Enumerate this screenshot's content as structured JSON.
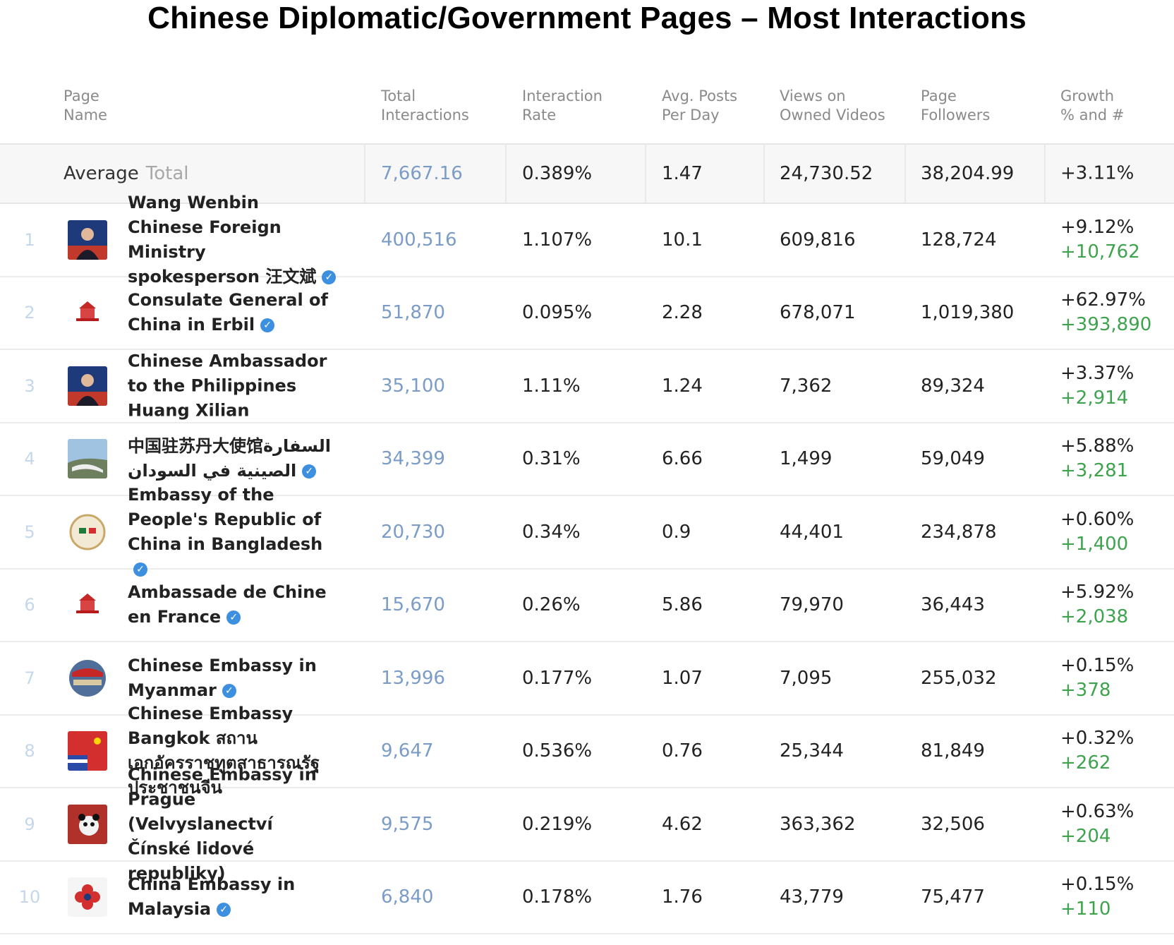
{
  "title": "Chinese Diplomatic/Government Pages – Most Interactions",
  "columns": {
    "page_name": "Page\nName",
    "total_interactions": "Total\nInteractions",
    "interaction_rate": "Interaction\nRate",
    "avg_posts": "Avg. Posts\nPer Day",
    "views": "Views on\nOwned Videos",
    "followers": "Page\nFollowers",
    "growth": "Growth\n% and #"
  },
  "average": {
    "label": "Average",
    "sub_label": "Total",
    "total_interactions": "7,667.16",
    "interaction_rate": "0.389%",
    "avg_posts": "1.47",
    "views": "24,730.52",
    "followers": "38,204.99",
    "growth": "+3.11%"
  },
  "rows": [
    {
      "rank": "1",
      "name": "Wang Wenbin Chinese Foreign Ministry spokesperson 汪文斌",
      "avatar": "person-avatar",
      "total_interactions": "400,516",
      "interaction_rate": "1.107%",
      "avg_posts": "10.1",
      "views": "609,816",
      "followers": "128,724",
      "growth_pct": "+9.12%",
      "growth_num": "+10,762"
    },
    {
      "rank": "2",
      "name": "Consulate General of China in Erbil",
      "avatar": "building-avatar",
      "total_interactions": "51,870",
      "interaction_rate": "0.095%",
      "avg_posts": "2.28",
      "views": "678,071",
      "followers": "1,019,380",
      "growth_pct": "+62.97%",
      "growth_num": "+393,890"
    },
    {
      "rank": "3",
      "name": "Chinese Ambassador to the Philippines Huang Xilian",
      "avatar": "person-avatar",
      "total_interactions": "35,100",
      "interaction_rate": "1.11%",
      "avg_posts": "1.24",
      "views": "7,362",
      "followers": "89,324",
      "growth_pct": "+3.37%",
      "growth_num": "+2,914"
    },
    {
      "rank": "4",
      "name": "中国驻苏丹大使馆السفارة الصينية في السودان",
      "avatar": "landscape-avatar",
      "total_interactions": "34,399",
      "interaction_rate": "0.31%",
      "avg_posts": "6.66",
      "views": "1,499",
      "followers": "59,049",
      "growth_pct": "+5.88%",
      "growth_num": "+3,281"
    },
    {
      "rank": "5",
      "name": "Embassy of the People's Republic of China in Bangladesh",
      "avatar": "flags-avatar",
      "total_interactions": "20,730",
      "interaction_rate": "0.34%",
      "avg_posts": "0.9",
      "views": "44,401",
      "followers": "234,878",
      "growth_pct": "+0.60%",
      "growth_num": "+1,400"
    },
    {
      "rank": "6",
      "name": "Ambassade de Chine en France",
      "avatar": "building-avatar",
      "total_interactions": "15,670",
      "interaction_rate": "0.26%",
      "avg_posts": "5.86",
      "views": "79,970",
      "followers": "36,443",
      "growth_pct": "+5.92%",
      "growth_num": "+2,038"
    },
    {
      "rank": "7",
      "name": "Chinese Embassy in Myanmar",
      "avatar": "globe-avatar",
      "total_interactions": "13,996",
      "interaction_rate": "0.177%",
      "avg_posts": "1.07",
      "views": "7,095",
      "followers": "255,032",
      "growth_pct": "+0.15%",
      "growth_num": "+378"
    },
    {
      "rank": "8",
      "name": "Chinese Embassy Bangkok สถานเอกอัครราชทูตสาธารณรัฐประชาชนจีน",
      "avatar": "flag-avatar",
      "total_interactions": "9,647",
      "interaction_rate": "0.536%",
      "avg_posts": "0.76",
      "views": "25,344",
      "followers": "81,849",
      "growth_pct": "+0.32%",
      "growth_num": "+262"
    },
    {
      "rank": "9",
      "name": "Chinese Embassy in Prague (Velvyslanectví Čínské lidové republiky)",
      "avatar": "panda-avatar",
      "total_interactions": "9,575",
      "interaction_rate": "0.219%",
      "avg_posts": "4.62",
      "views": "363,362",
      "followers": "32,506",
      "growth_pct": "+0.63%",
      "growth_num": "+204"
    },
    {
      "rank": "10",
      "name": "China Embassy in Malaysia",
      "avatar": "flower-avatar",
      "total_interactions": "6,840",
      "interaction_rate": "0.178%",
      "avg_posts": "1.76",
      "views": "43,779",
      "followers": "75,477",
      "growth_pct": "+0.15%",
      "growth_num": "+110"
    }
  ]
}
